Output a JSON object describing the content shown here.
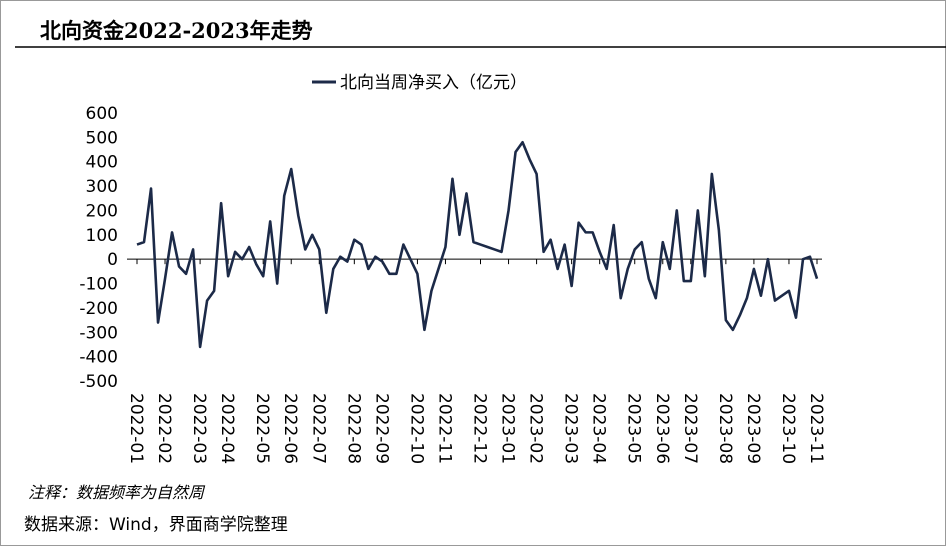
{
  "title": "北向资金2022-2023年走势",
  "chart_data": {
    "type": "line",
    "categories": [
      "2022-01",
      null,
      null,
      null,
      "2022-02",
      null,
      null,
      null,
      null,
      "2022-03",
      null,
      null,
      null,
      "2022-04",
      null,
      null,
      null,
      null,
      "2022-05",
      null,
      null,
      null,
      "2022-06",
      null,
      null,
      null,
      "2022-07",
      null,
      null,
      null,
      null,
      "2022-08",
      null,
      null,
      null,
      "2022-09",
      null,
      null,
      null,
      null,
      "2022-10",
      null,
      null,
      null,
      "2022-11",
      null,
      null,
      null,
      null,
      "2022-12",
      null,
      null,
      null,
      "2023-01",
      null,
      null,
      null,
      "2023-02",
      null,
      null,
      null,
      null,
      "2023-03",
      null,
      null,
      null,
      "2023-04",
      null,
      null,
      null,
      null,
      "2023-05",
      null,
      null,
      null,
      "2023-06",
      null,
      null,
      null,
      "2023-07",
      null,
      null,
      null,
      null,
      "2023-08",
      null,
      null,
      null,
      "2023-09",
      null,
      null,
      null,
      null,
      "2023-10",
      null,
      null,
      null,
      "2023-11"
    ],
    "series": [
      {
        "name": "北向当周净买入（亿元）",
        "color": "#1c2a48",
        "values": [
          60,
          70,
          290,
          -260,
          -80,
          110,
          -30,
          -60,
          40,
          -360,
          -170,
          -130,
          230,
          -70,
          30,
          0,
          50,
          -20,
          -70,
          155,
          -100,
          260,
          370,
          180,
          40,
          100,
          40,
          -220,
          -40,
          10,
          -10,
          80,
          60,
          -40,
          10,
          -10,
          -60,
          -60,
          60,
          0,
          -60,
          -290,
          -130,
          -40,
          50,
          330,
          100,
          270,
          70,
          60,
          50,
          40,
          30,
          200,
          440,
          480,
          410,
          350,
          30,
          80,
          -40,
          60,
          -110,
          150,
          110,
          110,
          30,
          -40,
          140,
          -160,
          -40,
          40,
          70,
          -80,
          -160,
          70,
          -40,
          200,
          -90,
          -90,
          200,
          -70,
          350,
          120,
          -250,
          -290,
          -230,
          -160,
          -40,
          -150,
          0,
          -170,
          -150,
          -130,
          -240,
          0,
          10,
          -80
        ]
      }
    ],
    "ylim": [
      -500,
      600
    ],
    "yticks": [
      -500,
      -400,
      -300,
      -200,
      -100,
      0,
      100,
      200,
      300,
      400,
      500,
      600
    ],
    "legend": "top"
  },
  "notes": [
    "注释：数据频率为自然周",
    "数据来源：Wind，界面商学院整理"
  ]
}
